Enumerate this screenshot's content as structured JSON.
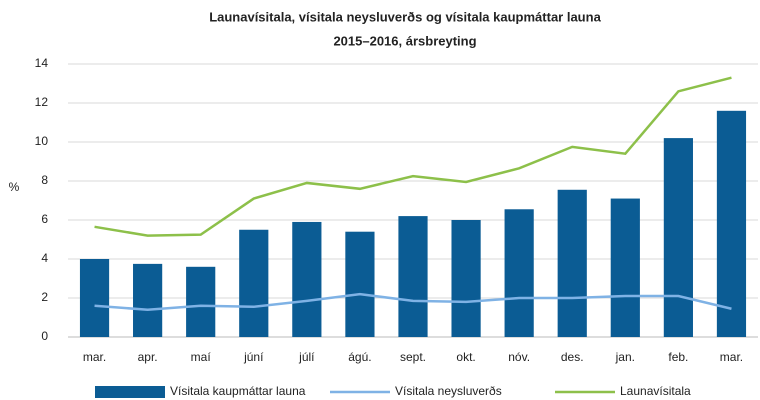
{
  "chart_data": {
    "type": "bar",
    "title": "Launavísitala, vísitala neysluverðs og vísitala kaupmáttar launa",
    "subtitle": "2015–2016,  ársbreyting",
    "y_label": "%",
    "categories": [
      "mar.",
      "apr.",
      "maí",
      "júní",
      "júlí",
      "ágú.",
      "sept.",
      "okt.",
      "nóv.",
      "des.",
      "jan.",
      "feb.",
      "mar."
    ],
    "series": [
      {
        "name": "Vísitala kaupmáttar launa",
        "type": "bar",
        "color": "#0b5c94",
        "values": [
          4.0,
          3.75,
          3.6,
          5.5,
          5.9,
          5.4,
          6.2,
          6.0,
          6.55,
          7.55,
          7.1,
          10.2,
          11.6
        ]
      },
      {
        "name": "Vísitala neysluverðs",
        "type": "line",
        "color": "#7fb2e5",
        "values": [
          1.6,
          1.4,
          1.6,
          1.55,
          1.85,
          2.2,
          1.85,
          1.8,
          2.0,
          2.0,
          2.1,
          2.1,
          1.45
        ]
      },
      {
        "name": "Launavísitala",
        "type": "line",
        "color": "#8dc04a",
        "values": [
          5.65,
          5.2,
          5.25,
          7.1,
          7.9,
          7.6,
          8.25,
          7.95,
          8.65,
          9.75,
          9.4,
          12.6,
          13.3
        ]
      }
    ],
    "ylim": [
      0,
      14
    ],
    "yticks": [
      0,
      2,
      4,
      6,
      8,
      10,
      12,
      14
    ],
    "grid": true,
    "legend": "bottom"
  }
}
